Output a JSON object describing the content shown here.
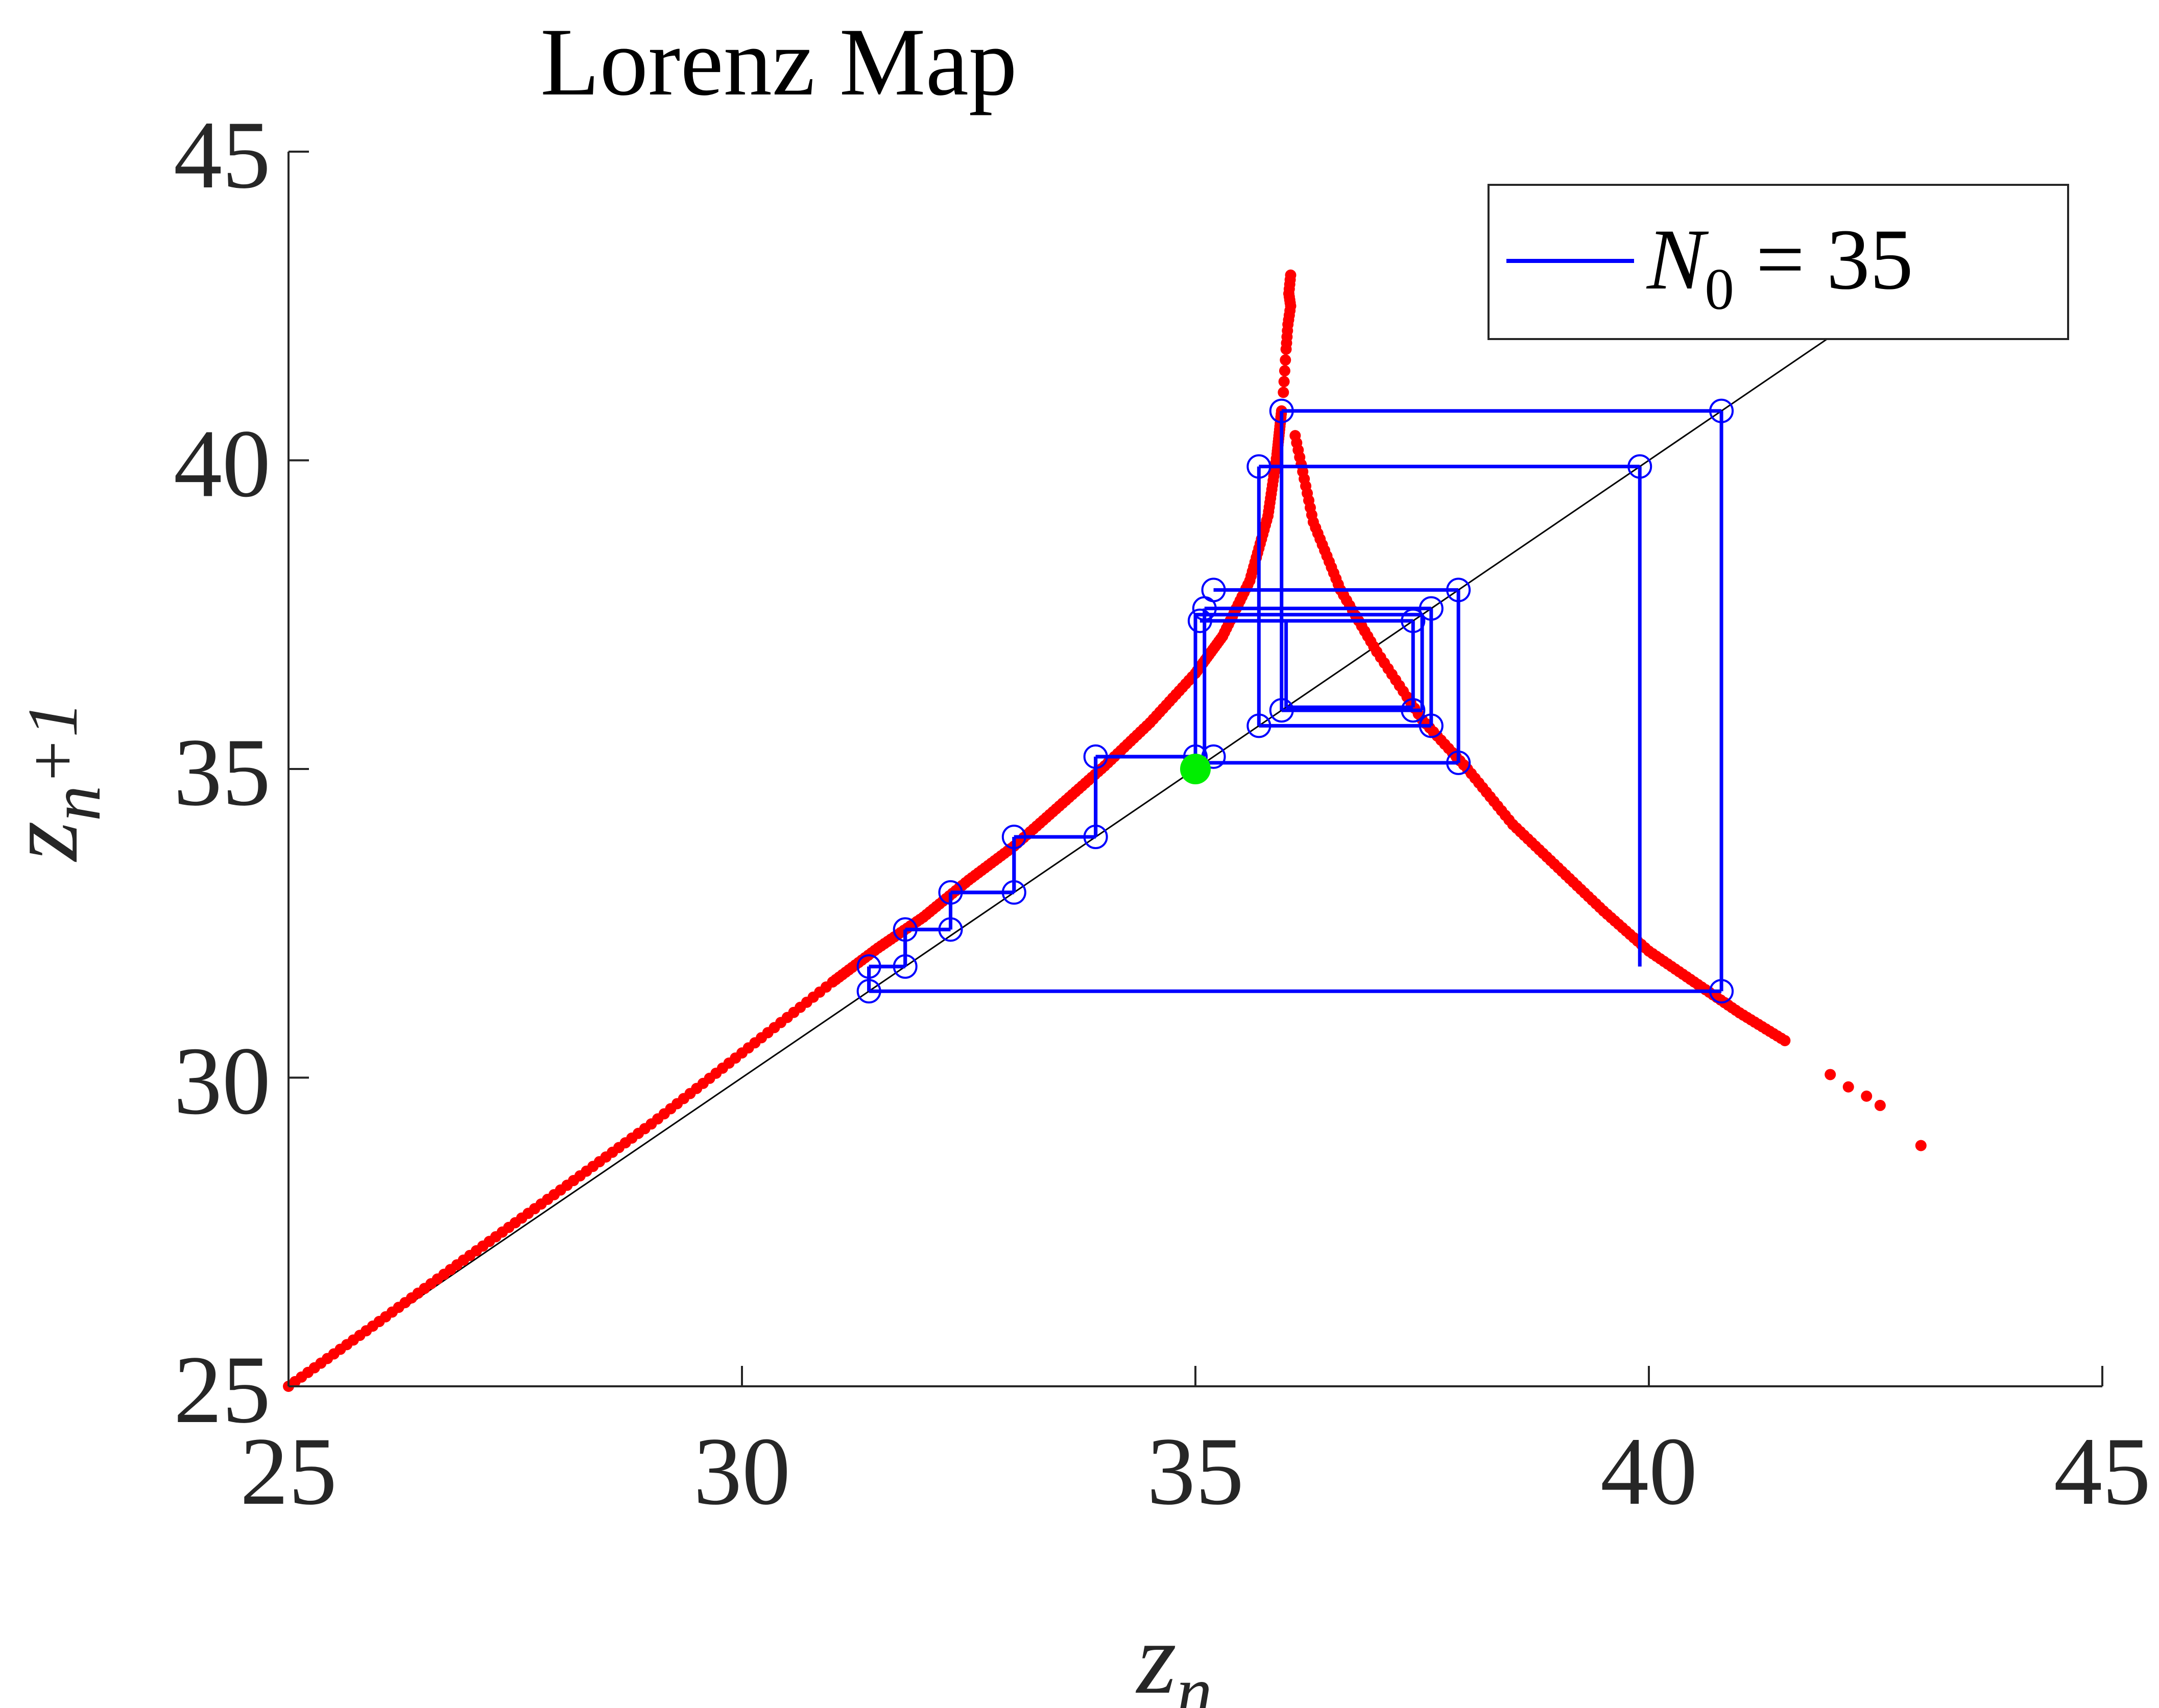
{
  "chart_data": {
    "type": "scatter",
    "title": "Lorenz Map",
    "xlabel": {
      "base": "z",
      "sub": "n"
    },
    "ylabel": {
      "base": "z",
      "sub": "n",
      "suffix": "+1"
    },
    "xlim": [
      25,
      45
    ],
    "ylim": [
      25,
      45
    ],
    "xticks": [
      25,
      30,
      35,
      40,
      45
    ],
    "yticks": [
      25,
      30,
      35,
      40,
      45
    ],
    "tick_labels": {
      "x": [
        "25",
        "30",
        "35",
        "40",
        "45"
      ],
      "y": [
        "25",
        "30",
        "35",
        "40",
        "45"
      ]
    },
    "legend": {
      "position": "top-right",
      "label_main": "N",
      "label_sub": "0",
      "label_rest": " = 35"
    },
    "colors": {
      "map_points": "#ff0000",
      "cobweb": "#0000ff",
      "diagonal": "#000000",
      "start_point": "#00ee00",
      "axes": "#262626"
    },
    "identity_line": {
      "x": [
        25,
        43.7
      ],
      "y": [
        25,
        43.7
      ]
    },
    "map_curve": {
      "left_branch": [
        [
          25,
          25.0
        ],
        [
          26,
          26.05
        ],
        [
          27,
          27.12
        ],
        [
          28,
          28.18
        ],
        [
          29,
          29.25
        ],
        [
          30,
          30.4
        ],
        [
          31,
          31.55
        ],
        [
          31.5,
          32.1
        ],
        [
          32,
          32.6
        ],
        [
          32.5,
          33.2
        ],
        [
          33,
          33.75
        ],
        [
          33.5,
          34.4
        ],
        [
          34,
          35.05
        ],
        [
          34.5,
          35.75
        ],
        [
          35,
          36.55
        ],
        [
          35.3,
          37.15
        ],
        [
          35.6,
          38.05
        ],
        [
          35.8,
          39.1
        ],
        [
          35.9,
          40.1
        ],
        [
          35.95,
          40.8
        ]
      ],
      "spike": [
        [
          35.97,
          41.1
        ],
        [
          36.0,
          41.8
        ],
        [
          36.02,
          42.2
        ],
        [
          36.05,
          42.5
        ],
        [
          36.03,
          42.7
        ],
        [
          36.05,
          43.0
        ]
      ],
      "right_branch": [
        [
          36.1,
          40.4
        ],
        [
          36.3,
          39.0
        ],
        [
          36.6,
          37.9
        ],
        [
          37.0,
          36.9
        ],
        [
          37.5,
          35.8
        ],
        [
          38.0,
          35.0
        ],
        [
          38.5,
          34.1
        ],
        [
          39.0,
          33.4
        ],
        [
          39.5,
          32.7
        ],
        [
          40.0,
          32.05
        ],
        [
          40.5,
          31.55
        ],
        [
          41.0,
          31.05
        ],
        [
          41.5,
          30.6
        ]
      ],
      "scattered": [
        [
          42.0,
          30.05
        ],
        [
          42.2,
          29.85
        ],
        [
          42.4,
          29.7
        ],
        [
          42.55,
          29.55
        ],
        [
          43.0,
          28.9
        ]
      ]
    },
    "cobweb_orbit": [
      [
        35.0,
        35.2
      ],
      [
        35.2,
        37.9
      ],
      [
        37.9,
        35.1
      ],
      [
        35.1,
        37.6
      ],
      [
        37.6,
        35.7
      ],
      [
        35.7,
        39.9
      ],
      [
        39.9,
        31.8
      ],
      [
        31.4,
        32.3
      ],
      [
        32.3,
        33.0
      ],
      [
        33.0,
        33.9
      ],
      [
        33.9,
        35.2
      ],
      [
        35.2,
        37.9
      ],
      [
        37.6,
        35.7
      ],
      [
        35.7,
        39.9
      ],
      [
        39.9,
        31.4
      ],
      [
        31.4,
        31.8
      ]
    ],
    "cobweb_lines": [
      [
        31.4,
        31.4
      ],
      [
        31.4,
        31.8
      ],
      [
        31.8,
        31.8
      ],
      [
        31.8,
        32.4
      ],
      [
        32.3,
        32.4
      ],
      [
        32.3,
        33.0
      ],
      [
        33.0,
        33.0
      ],
      [
        33.0,
        33.9
      ],
      [
        33.9,
        33.9
      ],
      [
        33.9,
        35.2
      ],
      [
        35.0,
        35.2
      ],
      [
        35.0,
        37.5
      ],
      [
        37.5,
        37.5
      ],
      [
        37.5,
        35.95
      ],
      [
        35.95,
        35.95
      ],
      [
        35.95,
        40.8
      ],
      [
        40.8,
        40.8
      ],
      [
        40.8,
        31.4
      ],
      [
        31.4,
        31.4
      ],
      [
        31.4,
        31.8
      ],
      [
        31.8,
        31.8
      ],
      [
        31.8,
        32.4
      ],
      [
        32.3,
        32.4
      ],
      [
        32.3,
        33.0
      ],
      [
        33.0,
        33.0
      ],
      [
        33.0,
        33.9
      ],
      [
        33.9,
        33.9
      ],
      [
        33.9,
        35.2
      ],
      [
        35.1,
        35.2
      ],
      [
        35.1,
        37.6
      ],
      [
        37.6,
        37.6
      ],
      [
        37.6,
        35.7
      ],
      [
        35.7,
        35.7
      ],
      [
        35.7,
        39.9
      ],
      [
        39.9,
        39.9
      ],
      [
        39.9,
        31.8
      ],
      [
        35.05,
        37.4
      ],
      [
        37.4,
        37.4
      ],
      [
        37.4,
        36.0
      ],
      [
        36.0,
        36.0
      ],
      [
        36.0,
        37.4
      ],
      [
        35.2,
        37.9
      ],
      [
        37.9,
        37.9
      ],
      [
        37.9,
        35.1
      ],
      [
        35.1,
        35.1
      ]
    ],
    "cobweb_markers": [
      [
        35.0,
        35.2
      ],
      [
        35.2,
        35.2
      ],
      [
        35.05,
        37.4
      ],
      [
        35.1,
        37.6
      ],
      [
        35.2,
        37.9
      ],
      [
        37.4,
        37.4
      ],
      [
        37.6,
        37.6
      ],
      [
        37.9,
        37.9
      ],
      [
        37.4,
        35.95
      ],
      [
        37.6,
        35.7
      ],
      [
        37.9,
        35.1
      ],
      [
        35.7,
        35.7
      ],
      [
        35.95,
        35.95
      ],
      [
        35.7,
        39.9
      ],
      [
        35.95,
        40.8
      ],
      [
        39.9,
        39.9
      ],
      [
        40.8,
        40.8
      ],
      [
        40.8,
        31.4
      ],
      [
        31.4,
        31.4
      ],
      [
        31.4,
        31.8
      ],
      [
        31.8,
        31.8
      ],
      [
        31.8,
        32.4
      ],
      [
        32.3,
        32.4
      ],
      [
        32.3,
        33.0
      ],
      [
        33.0,
        33.0
      ],
      [
        33.0,
        33.9
      ],
      [
        33.9,
        33.9
      ],
      [
        33.9,
        35.2
      ]
    ],
    "start_point": [
      35.0,
      35.0
    ]
  }
}
